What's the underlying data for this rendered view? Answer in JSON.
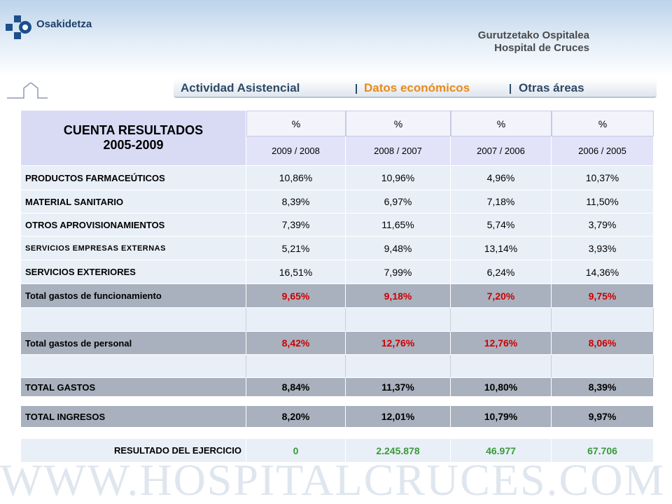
{
  "header": {
    "brand": "Osakidetza",
    "hospital_line1": "Gurutzetako Ospitalea",
    "hospital_line2": "Hospital de Cruces"
  },
  "nav": [
    "Actividad Asistencial",
    "Datos económicos",
    "Otras áreas"
  ],
  "table": {
    "title": [
      "CUENTA RESULTADOS",
      "2005-2009"
    ],
    "units": [
      "%",
      "%",
      "%",
      "%"
    ],
    "periods": [
      "2009 / 2008",
      "2008 / 2007",
      "2007 / 2006",
      "2006 / 2005"
    ],
    "rows": [
      [
        "PRODUCTOS FARMACEÚTICOS",
        "10,86%",
        "10,96%",
        "4,96%",
        "10,37%"
      ],
      [
        "MATERIAL SANITARIO",
        "8,39%",
        "6,97%",
        "7,18%",
        "11,50%"
      ],
      [
        "OTROS APROVISIONAMIENTOS",
        "7,39%",
        "11,65%",
        "5,74%",
        "3,79%"
      ],
      [
        "SERVICIOS EMPRESAS EXTERNAS",
        "5,21%",
        "9,48%",
        "13,14%",
        "3,93%"
      ],
      [
        "SERVICIOS EXTERIORES",
        "16,51%",
        "7,99%",
        "6,24%",
        "14,36%"
      ],
      [
        "Total gastos de funcionamiento",
        "9,65%",
        "9,18%",
        "7,20%",
        "9,75%"
      ],
      [
        "Total gastos de personal",
        "8,42%",
        "12,76%",
        "12,76%",
        "8,06%"
      ],
      [
        "TOTAL GASTOS",
        "8,84%",
        "11,37%",
        "10,80%",
        "8,39%"
      ],
      [
        "TOTAL INGRESOS",
        "8,20%",
        "12,01%",
        "10,79%",
        "9,97%"
      ],
      [
        "RESULTADO DEL EJERCICIO",
        "0",
        "2.245.878",
        "46.977",
        "67.706"
      ]
    ]
  },
  "footer": {
    "watermark": "WWW.HOSPITALCRUCES.COM"
  }
}
